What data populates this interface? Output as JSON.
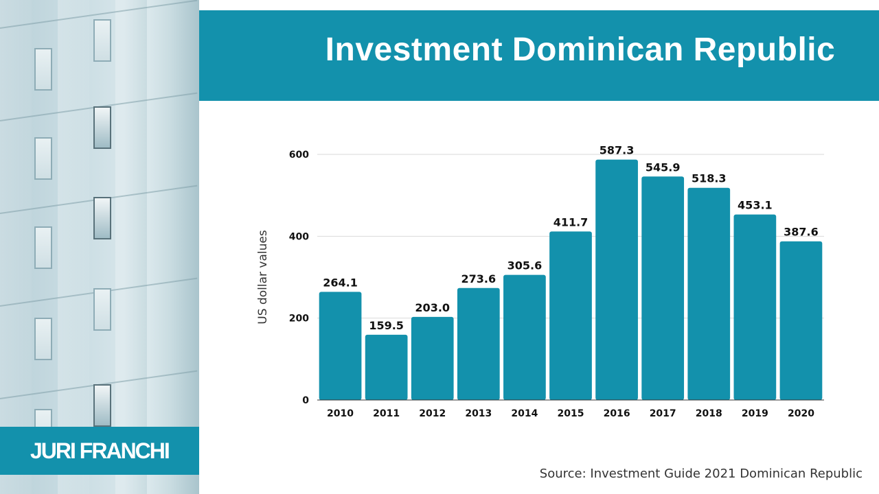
{
  "title": "Investment Dominican Republic",
  "brand": "JURI FRANCHI",
  "source": "Source: Investment Guide 2021 Dominican Republic",
  "colors": {
    "accent": "#1391ac",
    "bar": "#1391ac",
    "grid": "#d9d9d9",
    "text": "#111111"
  },
  "chart_data": {
    "type": "bar",
    "title": "",
    "xlabel": "",
    "ylabel": "US dollar values",
    "categories": [
      "2010",
      "2011",
      "2012",
      "2013",
      "2014",
      "2015",
      "2016",
      "2017",
      "2018",
      "2019",
      "2020"
    ],
    "values": [
      264.1,
      159.5,
      203.0,
      273.6,
      305.6,
      411.7,
      587.3,
      545.9,
      518.3,
      453.1,
      387.6
    ],
    "value_labels": [
      "264.1",
      "159.5",
      "203.0",
      "273.6",
      "305.6",
      "411.7",
      "587.3",
      "545.9",
      "518.3",
      "453.1",
      "387.6"
    ],
    "yticks": [
      0,
      200,
      400,
      600
    ],
    "ylim": [
      0,
      600
    ],
    "grid": true,
    "legend": false
  }
}
